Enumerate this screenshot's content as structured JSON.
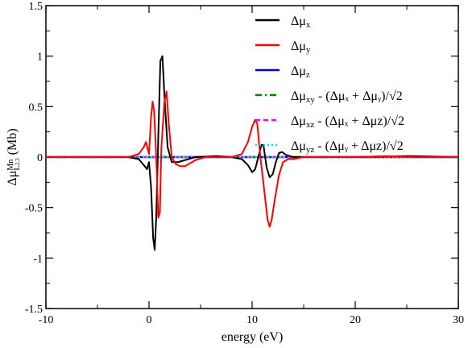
{
  "chart_data": {
    "type": "line",
    "xlabel": "energy (eV)",
    "ylabel": {
      "main": "Δμ",
      "sup": "Mn",
      "sub": "L",
      "subsub": "2,3",
      "unit": "(Mb)"
    },
    "xlim": [
      -10,
      30
    ],
    "ylim": [
      -1.5,
      1.5
    ],
    "x_ticks": [
      -10,
      0,
      10,
      20,
      30
    ],
    "x_tick_labels": [
      "-10",
      "0",
      "10",
      "20",
      "30"
    ],
    "y_ticks": [
      -1.5,
      -1,
      -0.5,
      0,
      0.5,
      1,
      1.5
    ],
    "y_tick_labels": [
      "-1.5",
      "-1",
      "-0.5",
      "0",
      "0.5",
      "1",
      "1.5"
    ],
    "grid": false,
    "legend_position": "top-right",
    "legend": [
      {
        "main": "Δμ",
        "sub": "x",
        "rest": "",
        "color": "#000000",
        "dash": "solid"
      },
      {
        "main": "Δμ",
        "sub": "y",
        "rest": "",
        "color": "#ff0000",
        "dash": "solid"
      },
      {
        "main": "Δμ",
        "sub": "z",
        "rest": "",
        "color": "#0000cc",
        "dash": "solid"
      },
      {
        "main": "Δμ",
        "sub": "xy",
        "rest": " - (Δμ_x + Δμ_y)/√2",
        "color": "#008000",
        "dash": "dashdot"
      },
      {
        "main": "Δμ",
        "sub": "xz",
        "rest": " - (Δμ_x + Δμ_z)/√2",
        "color": "#ff00ff",
        "dash": "dash"
      },
      {
        "main": "Δμ",
        "sub": "yz",
        "rest": " - (Δμ_y + Δμ_z)/√2",
        "color": "#00e5ee",
        "dash": "dot"
      }
    ],
    "series": [
      {
        "name": "Δμx",
        "color": "#000000",
        "points": [
          [
            -10,
            0
          ],
          [
            -2,
            0
          ],
          [
            -1,
            -0.02
          ],
          [
            -0.5,
            -0.08
          ],
          [
            -0.2,
            -0.12
          ],
          [
            0,
            -0.05
          ],
          [
            0.2,
            -0.3
          ],
          [
            0.4,
            -0.8
          ],
          [
            0.55,
            -0.92
          ],
          [
            0.7,
            -0.6
          ],
          [
            0.9,
            0.2
          ],
          [
            1.1,
            0.95
          ],
          [
            1.3,
            1.0
          ],
          [
            1.5,
            0.6
          ],
          [
            1.8,
            0.1
          ],
          [
            2.2,
            -0.05
          ],
          [
            2.8,
            -0.05
          ],
          [
            3.5,
            -0.03
          ],
          [
            4.5,
            0
          ],
          [
            6.5,
            0.01
          ],
          [
            8,
            0
          ],
          [
            9,
            -0.02
          ],
          [
            9.6,
            -0.08
          ],
          [
            10,
            -0.15
          ],
          [
            10.3,
            -0.12
          ],
          [
            10.6,
            0
          ],
          [
            10.9,
            0.12
          ],
          [
            11.1,
            0.12
          ],
          [
            11.4,
            -0.1
          ],
          [
            11.7,
            -0.2
          ],
          [
            12.0,
            -0.17
          ],
          [
            12.3,
            -0.05
          ],
          [
            12.6,
            0.04
          ],
          [
            12.9,
            0.05
          ],
          [
            13.3,
            0.02
          ],
          [
            14,
            0
          ],
          [
            20,
            0
          ],
          [
            25,
            0.01
          ],
          [
            30,
            0
          ]
        ]
      },
      {
        "name": "Δμy",
        "color": "#ff0000",
        "points": [
          [
            -10,
            0
          ],
          [
            -2,
            0
          ],
          [
            -1,
            0.03
          ],
          [
            -0.5,
            0.1
          ],
          [
            -0.3,
            0.15
          ],
          [
            0,
            0.03
          ],
          [
            0.2,
            0.4
          ],
          [
            0.35,
            0.55
          ],
          [
            0.5,
            0.45
          ],
          [
            0.7,
            0.0
          ],
          [
            0.9,
            -0.6
          ],
          [
            1.05,
            -0.55
          ],
          [
            1.2,
            0.1
          ],
          [
            1.5,
            0.55
          ],
          [
            1.7,
            0.65
          ],
          [
            1.9,
            0.35
          ],
          [
            2.2,
            0.0
          ],
          [
            2.6,
            -0.07
          ],
          [
            3.0,
            -0.09
          ],
          [
            3.5,
            -0.09
          ],
          [
            4.0,
            -0.06
          ],
          [
            4.5,
            -0.03
          ],
          [
            5.5,
            0
          ],
          [
            8,
            0
          ],
          [
            9,
            0.03
          ],
          [
            9.6,
            0.15
          ],
          [
            10,
            0.3
          ],
          [
            10.3,
            0.37
          ],
          [
            10.5,
            0.33
          ],
          [
            10.8,
            0.0
          ],
          [
            11.2,
            -0.35
          ],
          [
            11.5,
            -0.62
          ],
          [
            11.7,
            -0.69
          ],
          [
            11.9,
            -0.62
          ],
          [
            12.2,
            -0.42
          ],
          [
            12.6,
            -0.18
          ],
          [
            13,
            -0.05
          ],
          [
            13.5,
            -0.02
          ],
          [
            14,
            -0.02
          ],
          [
            15,
            0
          ],
          [
            20,
            0
          ],
          [
            23,
            0.01
          ],
          [
            26,
            0
          ],
          [
            30,
            0
          ]
        ]
      },
      {
        "name": "Δμz",
        "color": "#0000cc",
        "points": [
          [
            -10,
            0
          ],
          [
            30,
            0
          ]
        ]
      },
      {
        "name": "Δμxy - (Δμx + Δμy)/√2",
        "color": "#008000",
        "points": [
          [
            -10,
            0
          ],
          [
            30,
            0
          ]
        ]
      },
      {
        "name": "Δμxz - (Δμx + Δμz)/√2",
        "color": "#ff00ff",
        "points": [
          [
            -10,
            0
          ],
          [
            30,
            0
          ]
        ]
      },
      {
        "name": "Δμyz - (Δμy + Δμz)/√2",
        "color": "#00e5ee",
        "points": [
          [
            -10,
            0
          ],
          [
            30,
            0
          ]
        ]
      }
    ]
  }
}
